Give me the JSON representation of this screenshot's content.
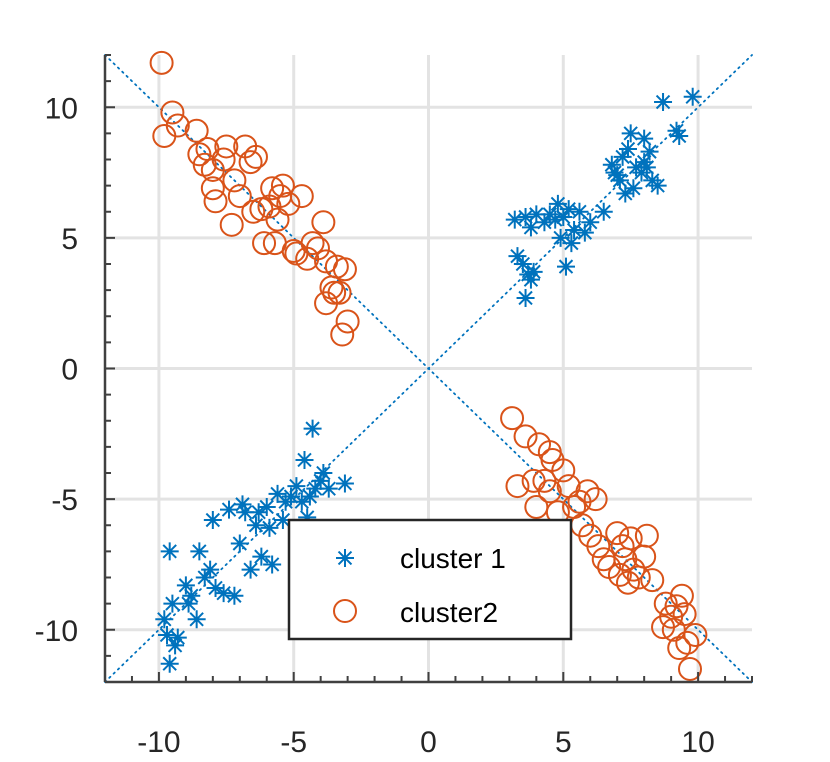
{
  "chart_data": {
    "type": "scatter",
    "title": "",
    "xlabel": "",
    "ylabel": "",
    "xlim": [
      -12,
      12
    ],
    "ylim": [
      -12,
      12
    ],
    "xticks": [
      -10,
      -5,
      0,
      5,
      10
    ],
    "yticks": [
      -10,
      -5,
      0,
      5,
      10
    ],
    "xtick_labels": [
      "-10",
      "-5",
      "0",
      "5",
      "10"
    ],
    "ytick_labels": [
      "-10",
      "-5",
      "0",
      "5",
      "10"
    ],
    "grid": true,
    "legend_position": "lower-center",
    "reference_lines": [
      {
        "name": "diagonal y=x",
        "from": [
          -12,
          -12
        ],
        "to": [
          12,
          12
        ],
        "style": "dotted",
        "color": "#0072BD"
      },
      {
        "name": "diagonal y=-x",
        "from": [
          -12,
          12
        ],
        "to": [
          12,
          -12
        ],
        "style": "dotted",
        "color": "#0072BD"
      }
    ],
    "series": [
      {
        "name": "cluster 1",
        "marker": "asterisk",
        "color": "#0072BD",
        "points": [
          [
            3.2,
            5.7
          ],
          [
            3.6,
            5.8
          ],
          [
            3.8,
            5.4
          ],
          [
            4.0,
            5.9
          ],
          [
            4.3,
            5.6
          ],
          [
            4.5,
            5.9
          ],
          [
            4.7,
            5.7
          ],
          [
            4.8,
            6.3
          ],
          [
            5.0,
            5.8
          ],
          [
            5.2,
            6.1
          ],
          [
            5.4,
            5.3
          ],
          [
            5.6,
            6.0
          ],
          [
            5.8,
            5.2
          ],
          [
            4.9,
            5.0
          ],
          [
            5.3,
            4.8
          ],
          [
            3.3,
            4.3
          ],
          [
            3.5,
            4.0
          ],
          [
            3.7,
            3.6
          ],
          [
            3.9,
            3.7
          ],
          [
            3.6,
            2.7
          ],
          [
            3.8,
            3.4
          ],
          [
            5.1,
            3.9
          ],
          [
            6.0,
            5.6
          ],
          [
            6.5,
            6.0
          ],
          [
            6.8,
            7.8
          ],
          [
            7.0,
            7.4
          ],
          [
            7.2,
            8.1
          ],
          [
            7.4,
            8.4
          ],
          [
            7.5,
            9.0
          ],
          [
            7.7,
            7.7
          ],
          [
            8.0,
            8.8
          ],
          [
            8.2,
            8.3
          ],
          [
            8.3,
            7.2
          ],
          [
            8.1,
            7.7
          ],
          [
            7.9,
            7.5
          ],
          [
            7.3,
            6.7
          ],
          [
            7.6,
            6.9
          ],
          [
            7.1,
            7.2
          ],
          [
            6.9,
            7.5
          ],
          [
            8.5,
            7.0
          ],
          [
            8.7,
            10.2
          ],
          [
            9.2,
            9.1
          ],
          [
            9.3,
            8.9
          ],
          [
            9.8,
            10.4
          ],
          [
            8.0,
            7.9
          ],
          [
            -9.6,
            -11.3
          ],
          [
            -9.4,
            -10.6
          ],
          [
            -9.7,
            -10.2
          ],
          [
            -9.8,
            -9.6
          ],
          [
            -9.5,
            -9.0
          ],
          [
            -9.6,
            -7.0
          ],
          [
            -9.3,
            -10.3
          ],
          [
            -9.0,
            -8.3
          ],
          [
            -8.9,
            -9.0
          ],
          [
            -8.6,
            -9.6
          ],
          [
            -8.8,
            -8.7
          ],
          [
            -8.3,
            -8.0
          ],
          [
            -8.1,
            -7.7
          ],
          [
            -8.5,
            -7.0
          ],
          [
            -8.0,
            -5.8
          ],
          [
            -7.9,
            -8.4
          ],
          [
            -7.6,
            -8.6
          ],
          [
            -7.2,
            -8.7
          ],
          [
            -7.0,
            -6.7
          ],
          [
            -6.8,
            -5.5
          ],
          [
            -6.9,
            -5.2
          ],
          [
            -6.6,
            -7.7
          ],
          [
            -6.4,
            -6.0
          ],
          [
            -6.3,
            -5.5
          ],
          [
            -6.2,
            -7.2
          ],
          [
            -6.0,
            -5.3
          ],
          [
            -5.8,
            -7.5
          ],
          [
            -5.6,
            -4.8
          ],
          [
            -5.4,
            -5.8
          ],
          [
            -5.3,
            -5.1
          ],
          [
            -5.1,
            -4.9
          ],
          [
            -4.9,
            -4.5
          ],
          [
            -4.7,
            -5.1
          ],
          [
            -4.5,
            -5.7
          ],
          [
            -4.6,
            -3.5
          ],
          [
            -4.4,
            -4.9
          ],
          [
            -4.3,
            -2.3
          ],
          [
            -4.2,
            -4.6
          ],
          [
            -4.0,
            -4.3
          ],
          [
            -3.9,
            -4.0
          ],
          [
            -3.7,
            -4.6
          ],
          [
            -3.1,
            -4.4
          ],
          [
            -7.4,
            -5.4
          ],
          [
            -5.9,
            -6.1
          ]
        ]
      },
      {
        "name": "cluster2",
        "marker": "circle",
        "color": "#D95319",
        "points": [
          [
            -9.9,
            11.7
          ],
          [
            -9.8,
            8.9
          ],
          [
            -9.5,
            9.8
          ],
          [
            -9.3,
            9.3
          ],
          [
            -8.6,
            9.1
          ],
          [
            -8.5,
            8.2
          ],
          [
            -8.3,
            7.8
          ],
          [
            -8.2,
            8.4
          ],
          [
            -8.0,
            7.6
          ],
          [
            -7.9,
            6.4
          ],
          [
            -8.0,
            6.9
          ],
          [
            -7.6,
            8.0
          ],
          [
            -7.5,
            8.5
          ],
          [
            -7.3,
            5.5
          ],
          [
            -7.2,
            7.2
          ],
          [
            -7.0,
            6.6
          ],
          [
            -6.8,
            8.5
          ],
          [
            -6.6,
            7.9
          ],
          [
            -6.4,
            8.1
          ],
          [
            -6.2,
            6.1
          ],
          [
            -6.1,
            4.8
          ],
          [
            -5.9,
            6.2
          ],
          [
            -5.8,
            6.9
          ],
          [
            -5.6,
            5.7
          ],
          [
            -5.5,
            6.6
          ],
          [
            -5.4,
            7.0
          ],
          [
            -5.2,
            6.3
          ],
          [
            -5.0,
            4.5
          ],
          [
            -4.9,
            4.4
          ],
          [
            -4.7,
            6.6
          ],
          [
            -4.5,
            4.2
          ],
          [
            -4.3,
            4.8
          ],
          [
            -4.1,
            4.6
          ],
          [
            -3.9,
            5.6
          ],
          [
            -3.8,
            4.1
          ],
          [
            -3.6,
            3.1
          ],
          [
            -3.4,
            3.9
          ],
          [
            -3.3,
            2.9
          ],
          [
            -3.1,
            3.8
          ],
          [
            -3.0,
            1.8
          ],
          [
            -3.2,
            1.3
          ],
          [
            -3.8,
            2.5
          ],
          [
            -3.5,
            2.9
          ],
          [
            -6.5,
            6.0
          ],
          [
            -5.7,
            4.8
          ],
          [
            3.1,
            -1.9
          ],
          [
            3.6,
            -2.6
          ],
          [
            4.1,
            -2.9
          ],
          [
            4.5,
            -3.2
          ],
          [
            4.6,
            -3.5
          ],
          [
            5.0,
            -3.9
          ],
          [
            4.3,
            -4.3
          ],
          [
            3.3,
            -4.5
          ],
          [
            3.9,
            -4.3
          ],
          [
            4.0,
            -5.3
          ],
          [
            4.5,
            -4.7
          ],
          [
            4.8,
            -5.5
          ],
          [
            5.2,
            -4.5
          ],
          [
            5.4,
            -5.3
          ],
          [
            5.6,
            -5.1
          ],
          [
            5.7,
            -6.0
          ],
          [
            5.9,
            -4.7
          ],
          [
            6.2,
            -5.0
          ],
          [
            6.0,
            -6.4
          ],
          [
            6.3,
            -6.8
          ],
          [
            6.5,
            -7.3
          ],
          [
            6.7,
            -7.6
          ],
          [
            7.0,
            -6.3
          ],
          [
            7.2,
            -6.8
          ],
          [
            7.3,
            -7.3
          ],
          [
            7.5,
            -6.5
          ],
          [
            7.6,
            -7.7
          ],
          [
            7.8,
            -8.0
          ],
          [
            8.0,
            -7.2
          ],
          [
            8.1,
            -6.4
          ],
          [
            8.3,
            -8.1
          ],
          [
            7.4,
            -8.2
          ],
          [
            7.1,
            -7.9
          ],
          [
            8.8,
            -9.0
          ],
          [
            9.0,
            -9.5
          ],
          [
            9.2,
            -9.1
          ],
          [
            9.4,
            -8.7
          ],
          [
            9.1,
            -10.0
          ],
          [
            9.6,
            -10.5
          ],
          [
            9.7,
            -11.5
          ],
          [
            9.9,
            -10.2
          ],
          [
            9.3,
            -10.7
          ],
          [
            8.7,
            -9.9
          ],
          [
            9.5,
            -9.4
          ]
        ]
      }
    ]
  }
}
